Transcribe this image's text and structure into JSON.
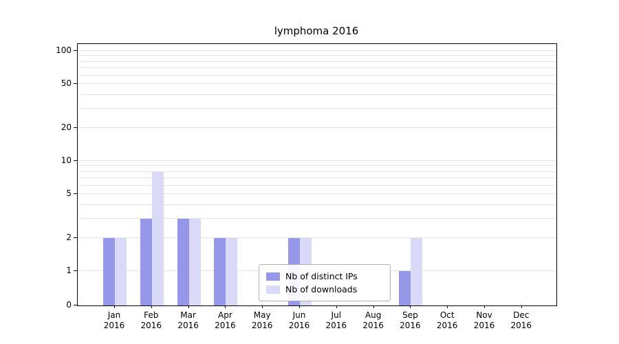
{
  "title": "lymphoma 2016",
  "chart_data": {
    "type": "bar",
    "title": "lymphoma 2016",
    "categories": [
      "Jan 2016",
      "Feb 2016",
      "Mar 2016",
      "Apr 2016",
      "May 2016",
      "Jun 2016",
      "Jul 2016",
      "Aug 2016",
      "Sep 2016",
      "Oct 2016",
      "Nov 2016",
      "Dec 2016"
    ],
    "series": [
      {
        "name": "Nb of distinct IPs",
        "color": "#9597e8",
        "values": [
          2,
          3,
          3,
          2,
          0,
          2,
          0,
          0,
          1,
          0,
          0,
          0
        ]
      },
      {
        "name": "Nb of downloads",
        "color": "#d9daf8",
        "values": [
          2,
          8,
          3,
          2,
          0,
          2,
          0,
          0,
          2,
          0,
          0,
          0
        ]
      }
    ],
    "yscale": "symlog",
    "yticks": [
      0,
      1,
      2,
      5,
      10,
      20,
      50,
      100
    ],
    "ylim": [
      0,
      115
    ],
    "gridline_values": [
      1,
      2,
      3,
      4,
      5,
      6,
      7,
      8,
      9,
      10,
      20,
      30,
      40,
      50,
      60,
      70,
      80,
      90,
      100
    ],
    "grid_color": "#e5e5e5",
    "xlabel": "",
    "ylabel": "",
    "legend_position": "lower center"
  },
  "colors": {
    "axis": "#000000",
    "grid": "#e5e5e5",
    "background": "#ffffff"
  }
}
